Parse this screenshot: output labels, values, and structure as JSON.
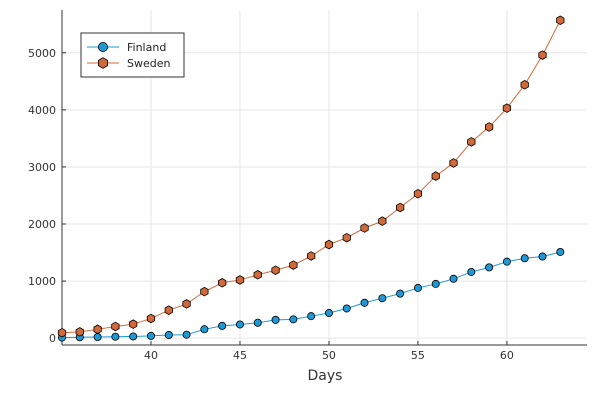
{
  "chart_data": {
    "type": "line",
    "title": "",
    "xlabel": "Days",
    "ylabel": "",
    "xlim": [
      35,
      64.5
    ],
    "ylim": [
      -120,
      5750
    ],
    "xticks": [
      40,
      45,
      50,
      55,
      60
    ],
    "yticks": [
      0,
      1000,
      2000,
      3000,
      4000,
      5000
    ],
    "xtick_labels": [
      "40",
      "45",
      "50",
      "55",
      "60"
    ],
    "ytick_labels": [
      "0",
      "1000",
      "2000",
      "3000",
      "4000",
      "5000"
    ],
    "grid": true,
    "legend_position": "top-left",
    "series": [
      {
        "name": "Finland",
        "color": "#1f98d6",
        "marker": "circle",
        "x": [
          35,
          36,
          37,
          38,
          39,
          40,
          41,
          42,
          43,
          44,
          45,
          46,
          47,
          48,
          49,
          50,
          51,
          52,
          53,
          54,
          55,
          56,
          57,
          58,
          59,
          60,
          61,
          62,
          63
        ],
        "y": [
          10,
          15,
          20,
          25,
          30,
          40,
          55,
          60,
          155,
          215,
          240,
          270,
          320,
          330,
          385,
          440,
          520,
          620,
          700,
          780,
          880,
          950,
          1040,
          1160,
          1240,
          1340,
          1400,
          1430,
          1510
        ]
      },
      {
        "name": "Sweden",
        "color": "#d2693a",
        "marker": "hexagon",
        "x": [
          35,
          36,
          37,
          38,
          39,
          40,
          41,
          42,
          43,
          44,
          45,
          46,
          47,
          48,
          49,
          50,
          51,
          52,
          53,
          54,
          55,
          56,
          57,
          58,
          59,
          60,
          61,
          62,
          63
        ],
        "y": [
          95,
          110,
          155,
          205,
          245,
          345,
          490,
          600,
          815,
          970,
          1020,
          1110,
          1190,
          1280,
          1440,
          1640,
          1760,
          1930,
          2050,
          2290,
          2530,
          2840,
          3070,
          3440,
          3700,
          4030,
          4440,
          4960,
          5570
        ]
      }
    ]
  }
}
